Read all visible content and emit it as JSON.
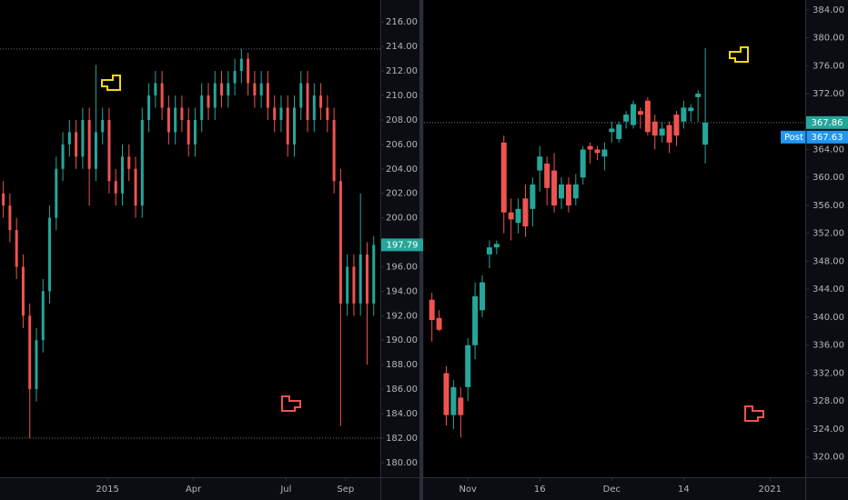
{
  "chart_data": [
    {
      "type": "candlestick",
      "up_color": "#26a69a",
      "down_color": "#ef5350",
      "x": [
        2,
        6,
        10,
        14,
        18,
        22,
        26,
        30,
        34,
        38,
        42,
        46,
        50,
        54,
        58,
        62,
        66,
        70,
        74,
        78,
        82,
        86,
        90,
        94,
        98,
        102,
        106,
        110,
        114,
        118,
        122,
        126,
        130,
        134,
        138,
        142,
        146,
        150,
        154,
        158,
        162,
        166,
        170,
        174,
        178,
        182,
        186,
        190,
        194,
        198,
        202,
        206,
        210,
        214,
        218,
        222,
        226
      ],
      "open": [
        202,
        201,
        199,
        196,
        192,
        186,
        190,
        194,
        200,
        204,
        206,
        207,
        205,
        208,
        204,
        207,
        208,
        203,
        202,
        205,
        204,
        201,
        208,
        210,
        211,
        209,
        207,
        209,
        208,
        206,
        208,
        210,
        209,
        211,
        210,
        211,
        212,
        213,
        211,
        210,
        211,
        209,
        208,
        209,
        206,
        209,
        211,
        208,
        210,
        209,
        208,
        203,
        193,
        196,
        193,
        197,
        193
      ],
      "high": [
        203,
        202,
        200,
        197,
        193,
        191,
        195,
        201,
        205,
        207,
        208,
        208,
        209,
        209,
        212.5,
        209,
        209,
        204,
        206,
        206,
        205,
        209,
        211,
        212,
        212,
        210,
        210,
        210,
        209,
        209,
        211,
        211,
        212,
        212,
        212,
        213,
        213.8,
        213.5,
        212,
        212,
        212,
        210,
        210,
        210,
        210,
        212,
        212,
        211,
        211,
        210,
        209,
        204,
        197,
        197,
        202,
        198,
        198.5
      ],
      "low": [
        200,
        198,
        195,
        191,
        182,
        185,
        189,
        193,
        199,
        203,
        205,
        204,
        204,
        201,
        203,
        206,
        202,
        201,
        201,
        203,
        200,
        200,
        207,
        209,
        208,
        206,
        206,
        207,
        205,
        205,
        207,
        208,
        208,
        209,
        209,
        210,
        211,
        210,
        209,
        209,
        208,
        207,
        207,
        205,
        205,
        208,
        207,
        207,
        208,
        207,
        202,
        183,
        192,
        192,
        192,
        188,
        192
      ],
      "close": [
        201,
        199,
        196,
        192,
        186,
        190,
        194,
        200,
        204,
        206,
        207,
        205,
        208,
        204,
        207,
        208,
        203,
        202,
        205,
        204,
        201,
        208,
        210,
        211,
        209,
        207,
        209,
        208,
        206,
        208,
        210,
        209,
        211,
        210,
        211,
        212,
        213,
        211,
        210,
        211,
        209,
        208,
        209,
        206,
        209,
        211,
        208,
        210,
        209,
        208,
        203,
        193,
        196,
        193,
        197,
        193,
        197.79
      ],
      "xlim": [
        0,
        230
      ],
      "xticks": [
        {
          "value": 65,
          "label": "2015"
        },
        {
          "value": 117,
          "label": "Apr"
        },
        {
          "value": 173,
          "label": "Jul"
        },
        {
          "value": 209,
          "label": "Sep"
        }
      ],
      "ylim": [
        178.8,
        217.8
      ],
      "yticks": [
        {
          "value": 180,
          "label": "180.00"
        },
        {
          "value": 182,
          "label": "182.00"
        },
        {
          "value": 184,
          "label": "184.00"
        },
        {
          "value": 186,
          "label": "186.00"
        },
        {
          "value": 188,
          "label": "188.00"
        },
        {
          "value": 190,
          "label": "190.00"
        },
        {
          "value": 192,
          "label": "192.00"
        },
        {
          "value": 194,
          "label": "194.00"
        },
        {
          "value": 196,
          "label": "196.00"
        },
        {
          "value": 198,
          "label": "198.00"
        },
        {
          "value": 200,
          "label": "200.00"
        },
        {
          "value": 202,
          "label": "202.00"
        },
        {
          "value": 204,
          "label": "204.00"
        },
        {
          "value": 206,
          "label": "206.00"
        },
        {
          "value": 208,
          "label": "208.00"
        },
        {
          "value": 210,
          "label": "210.00"
        },
        {
          "value": 212,
          "label": "212.00"
        },
        {
          "value": 214,
          "label": "214.00"
        },
        {
          "value": 216,
          "label": "216.00"
        }
      ],
      "levels": [
        213.8,
        182
      ],
      "last_price": 197.79
    },
    {
      "type": "candlestick",
      "up_color": "#26a69a",
      "down_color": "#ef5350",
      "x": [
        0,
        1,
        2,
        3,
        4,
        5,
        6,
        7,
        8,
        9,
        10,
        11,
        12,
        13,
        14,
        15,
        16,
        17,
        18,
        19,
        20,
        21,
        22,
        23,
        24,
        25,
        26,
        27,
        28,
        29,
        30,
        31,
        32,
        33,
        34,
        35,
        36,
        37,
        38
      ],
      "open": [
        342.5,
        339.9,
        332,
        326,
        328.5,
        330,
        336,
        341,
        349,
        350,
        365,
        355,
        353.5,
        357,
        355.5,
        361,
        362,
        361,
        357,
        359,
        357,
        360,
        364.5,
        364,
        363,
        366.5,
        365.5,
        368,
        367.5,
        369.5,
        371,
        368,
        366,
        367.5,
        369,
        368,
        369.5,
        371.5,
        364.7
      ],
      "high": [
        343.5,
        341,
        333,
        331,
        330,
        337,
        345,
        346,
        351,
        351,
        366,
        357,
        357,
        359,
        360,
        364.5,
        363,
        363.5,
        360,
        360,
        360.5,
        364.5,
        365,
        364.5,
        365,
        368,
        368,
        369.5,
        371,
        370,
        371.5,
        369,
        368,
        368,
        369.5,
        371,
        370.5,
        372.5,
        378.5
      ],
      "low": [
        336.5,
        338,
        324.5,
        324,
        322.8,
        328,
        334,
        340,
        347,
        349,
        352,
        351,
        352,
        351.5,
        353,
        358,
        356,
        355,
        355.5,
        355,
        356,
        359,
        362,
        362.5,
        361,
        365,
        365,
        367,
        367,
        367,
        366,
        364,
        365,
        363.5,
        364.5,
        367,
        368,
        368,
        362
      ],
      "close": [
        339.6,
        338.2,
        326,
        330,
        326,
        336,
        343,
        345,
        350,
        350.5,
        355,
        354,
        355.5,
        353,
        359,
        363,
        358.5,
        356,
        359,
        356,
        359,
        364,
        364,
        363.5,
        364,
        367,
        367.6,
        369,
        370.5,
        369,
        366.5,
        366,
        367,
        365,
        366,
        370,
        370,
        372,
        367.86
      ],
      "xlim": [
        -1.1,
        51.9
      ],
      "xticks": [
        {
          "value": 5,
          "label": "Nov"
        },
        {
          "value": 15,
          "label": "16"
        },
        {
          "value": 25,
          "label": "Dec"
        },
        {
          "value": 35,
          "label": "14"
        },
        {
          "value": 47,
          "label": "2021"
        }
      ],
      "ylim": [
        317.1,
        385.4
      ],
      "yticks": [
        {
          "value": 320,
          "label": "320.00"
        },
        {
          "value": 324,
          "label": "324.00"
        },
        {
          "value": 328,
          "label": "328.00"
        },
        {
          "value": 332,
          "label": "332.00"
        },
        {
          "value": 336,
          "label": "336.00"
        },
        {
          "value": 340,
          "label": "340.00"
        },
        {
          "value": 344,
          "label": "344.00"
        },
        {
          "value": 348,
          "label": "348.00"
        },
        {
          "value": 352,
          "label": "352.00"
        },
        {
          "value": 356,
          "label": "356.00"
        },
        {
          "value": 360,
          "label": "360.00"
        },
        {
          "value": 364,
          "label": "364.00"
        },
        {
          "value": 368,
          "label": "368.00"
        },
        {
          "value": 372,
          "label": "372.00"
        },
        {
          "value": 376,
          "label": "376.00"
        },
        {
          "value": 380,
          "label": "380.00"
        },
        {
          "value": 384,
          "label": "384.00"
        }
      ],
      "levels": [
        367.86
      ],
      "last_price": 367.86,
      "post_label": "Post",
      "post_price": 367.63
    }
  ]
}
